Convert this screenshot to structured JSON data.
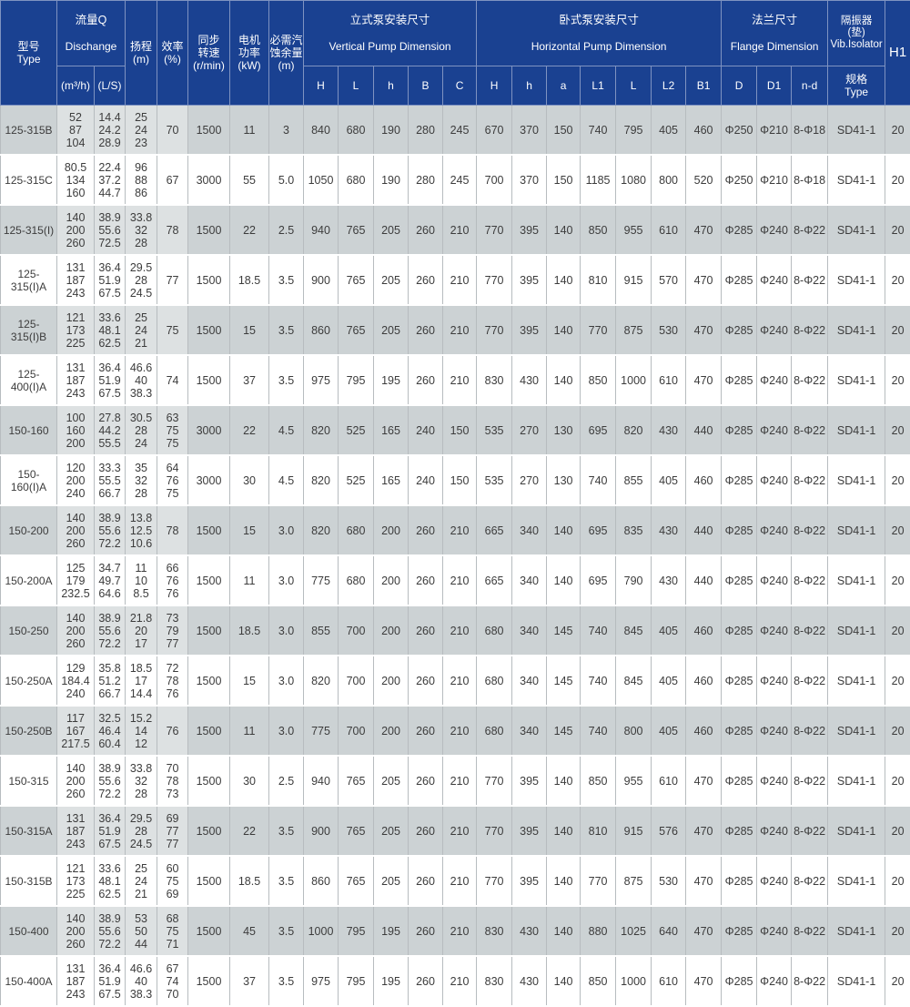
{
  "colors": {
    "header_bg": "#1a4191",
    "row_gray": "#ccd2d4",
    "row_white": "#ffffff",
    "grid_line": "#b7bcbf"
  },
  "table": {
    "header": {
      "type": "型号\nType",
      "discharge_zh": "流量Q",
      "discharge_en": "Dischange",
      "q_unit1": "(m³/h)",
      "q_unit2": "(L/S)",
      "head": "扬程\n(m)",
      "eff": "效率\n(%)",
      "speed": "同步\n转速\n(r/min)",
      "power": "电机\n功率\n(kW)",
      "npsh": "必需汽\n蚀余量\n(m)",
      "vertical_zh": "立式泵安装尺寸",
      "vertical_en": "Vertical Pump Dimension",
      "v_sub": {
        "H": "H",
        "L": "L",
        "h": "h",
        "B": "B",
        "C": "C"
      },
      "horizontal_zh": "卧式泵安装尺寸",
      "horizontal_en": "Horizontal Pump Dimension",
      "hz_sub": {
        "H": "H",
        "h": "h",
        "a": "a",
        "L1": "L1",
        "L": "L",
        "L2": "L2",
        "B1": "B1"
      },
      "flange_zh": "法兰尺寸",
      "flange_en": "Flange Dimension",
      "f_sub": {
        "D": "D",
        "D1": "D1",
        "nd": "n-d"
      },
      "vib": "隔振器\n(垫)\nVib.Isolator",
      "vib_sub": "规格\nType",
      "h1": "H1"
    },
    "rows": [
      {
        "type": "125-315B",
        "q1": "52\n87\n104",
        "q2": "14.4\n24.2\n28.9",
        "head": "25\n24\n23",
        "eff": "70",
        "speed": "1500",
        "power": "11",
        "npsh": "3",
        "vH": "840",
        "vL": "680",
        "vh": "190",
        "vB": "280",
        "vC": "245",
        "hH": "670",
        "hh": "370",
        "ha": "150",
        "hL1": "740",
        "hL": "795",
        "hL2": "405",
        "hB1": "460",
        "D": "Φ250",
        "D1": "Φ210",
        "nd": "8-Φ18",
        "vib": "SD41-1",
        "h1": "20"
      },
      {
        "type": "125-315C",
        "q1": "80.5\n134\n160",
        "q2": "22.4\n37.2\n44.7",
        "head": "96\n88\n86",
        "eff": "67",
        "speed": "3000",
        "power": "55",
        "npsh": "5.0",
        "vH": "1050",
        "vL": "680",
        "vh": "190",
        "vB": "280",
        "vC": "245",
        "hH": "700",
        "hh": "370",
        "ha": "150",
        "hL1": "1185",
        "hL": "1080",
        "hL2": "800",
        "hB1": "520",
        "D": "Φ250",
        "D1": "Φ210",
        "nd": "8-Φ18",
        "vib": "SD41-1",
        "h1": "20"
      },
      {
        "type": "125-315(I)",
        "q1": "140\n200\n260",
        "q2": "38.9\n55.6\n72.5",
        "head": "33.8\n32\n28",
        "eff": "78",
        "speed": "1500",
        "power": "22",
        "npsh": "2.5",
        "vH": "940",
        "vL": "765",
        "vh": "205",
        "vB": "260",
        "vC": "210",
        "hH": "770",
        "hh": "395",
        "ha": "140",
        "hL1": "850",
        "hL": "955",
        "hL2": "610",
        "hB1": "470",
        "D": "Φ285",
        "D1": "Φ240",
        "nd": "8-Φ22",
        "vib": "SD41-1",
        "h1": "20"
      },
      {
        "type": "125-315(I)A",
        "q1": "131\n187\n243",
        "q2": "36.4\n51.9\n67.5",
        "head": "29.5\n28\n24.5",
        "eff": "77",
        "speed": "1500",
        "power": "18.5",
        "npsh": "3.5",
        "vH": "900",
        "vL": "765",
        "vh": "205",
        "vB": "260",
        "vC": "210",
        "hH": "770",
        "hh": "395",
        "ha": "140",
        "hL1": "810",
        "hL": "915",
        "hL2": "570",
        "hB1": "470",
        "D": "Φ285",
        "D1": "Φ240",
        "nd": "8-Φ22",
        "vib": "SD41-1",
        "h1": "20"
      },
      {
        "type": "125-315(I)B",
        "q1": "121\n173\n225",
        "q2": "33.6\n48.1\n62.5",
        "head": "25\n24\n21",
        "eff": "75",
        "speed": "1500",
        "power": "15",
        "npsh": "3.5",
        "vH": "860",
        "vL": "765",
        "vh": "205",
        "vB": "260",
        "vC": "210",
        "hH": "770",
        "hh": "395",
        "ha": "140",
        "hL1": "770",
        "hL": "875",
        "hL2": "530",
        "hB1": "470",
        "D": "Φ285",
        "D1": "Φ240",
        "nd": "8-Φ22",
        "vib": "SD41-1",
        "h1": "20"
      },
      {
        "type": "125-400(I)A",
        "q1": "131\n187\n243",
        "q2": "36.4\n51.9\n67.5",
        "head": "46.6\n40\n38.3",
        "eff": "74",
        "speed": "1500",
        "power": "37",
        "npsh": "3.5",
        "vH": "975",
        "vL": "795",
        "vh": "195",
        "vB": "260",
        "vC": "210",
        "hH": "830",
        "hh": "430",
        "ha": "140",
        "hL1": "850",
        "hL": "1000",
        "hL2": "610",
        "hB1": "470",
        "D": "Φ285",
        "D1": "Φ240",
        "nd": "8-Φ22",
        "vib": "SD41-1",
        "h1": "20"
      },
      {
        "type": "150-160",
        "q1": "100\n160\n200",
        "q2": "27.8\n44.2\n55.5",
        "head": "30.5\n28\n24",
        "eff": "63\n75\n75",
        "speed": "3000",
        "power": "22",
        "npsh": "4.5",
        "vH": "820",
        "vL": "525",
        "vh": "165",
        "vB": "240",
        "vC": "150",
        "hH": "535",
        "hh": "270",
        "ha": "130",
        "hL1": "695",
        "hL": "820",
        "hL2": "430",
        "hB1": "440",
        "D": "Φ285",
        "D1": "Φ240",
        "nd": "8-Φ22",
        "vib": "SD41-1",
        "h1": "20"
      },
      {
        "type": "150-160(I)A",
        "q1": "120\n200\n240",
        "q2": "33.3\n55.5\n66.7",
        "head": "35\n32\n28",
        "eff": "64\n76\n75",
        "speed": "3000",
        "power": "30",
        "npsh": "4.5",
        "vH": "820",
        "vL": "525",
        "vh": "165",
        "vB": "240",
        "vC": "150",
        "hH": "535",
        "hh": "270",
        "ha": "130",
        "hL1": "740",
        "hL": "855",
        "hL2": "405",
        "hB1": "460",
        "D": "Φ285",
        "D1": "Φ240",
        "nd": "8-Φ22",
        "vib": "SD41-1",
        "h1": "20"
      },
      {
        "type": "150-200",
        "q1": "140\n200\n260",
        "q2": "38.9\n55.6\n72.2",
        "head": "13.8\n12.5\n10.6",
        "eff": "78",
        "speed": "1500",
        "power": "15",
        "npsh": "3.0",
        "vH": "820",
        "vL": "680",
        "vh": "200",
        "vB": "260",
        "vC": "210",
        "hH": "665",
        "hh": "340",
        "ha": "140",
        "hL1": "695",
        "hL": "835",
        "hL2": "430",
        "hB1": "440",
        "D": "Φ285",
        "D1": "Φ240",
        "nd": "8-Φ22",
        "vib": "SD41-1",
        "h1": "20"
      },
      {
        "type": "150-200A",
        "q1": "125\n179\n232.5",
        "q2": "34.7\n49.7\n64.6",
        "head": "11\n10\n8.5",
        "eff": "66\n76\n76",
        "speed": "1500",
        "power": "11",
        "npsh": "3.0",
        "vH": "775",
        "vL": "680",
        "vh": "200",
        "vB": "260",
        "vC": "210",
        "hH": "665",
        "hh": "340",
        "ha": "140",
        "hL1": "695",
        "hL": "790",
        "hL2": "430",
        "hB1": "440",
        "D": "Φ285",
        "D1": "Φ240",
        "nd": "8-Φ22",
        "vib": "SD41-1",
        "h1": "20"
      },
      {
        "type": "150-250",
        "q1": "140\n200\n260",
        "q2": "38.9\n55.6\n72.2",
        "head": "21.8\n20\n17",
        "eff": "73\n79\n77",
        "speed": "1500",
        "power": "18.5",
        "npsh": "3.0",
        "vH": "855",
        "vL": "700",
        "vh": "200",
        "vB": "260",
        "vC": "210",
        "hH": "680",
        "hh": "340",
        "ha": "145",
        "hL1": "740",
        "hL": "845",
        "hL2": "405",
        "hB1": "460",
        "D": "Φ285",
        "D1": "Φ240",
        "nd": "8-Φ22",
        "vib": "SD41-1",
        "h1": "20"
      },
      {
        "type": "150-250A",
        "q1": "129\n184.4\n240",
        "q2": "35.8\n51.2\n66.7",
        "head": "18.5\n17\n14.4",
        "eff": "72\n78\n76",
        "speed": "1500",
        "power": "15",
        "npsh": "3.0",
        "vH": "820",
        "vL": "700",
        "vh": "200",
        "vB": "260",
        "vC": "210",
        "hH": "680",
        "hh": "340",
        "ha": "145",
        "hL1": "740",
        "hL": "845",
        "hL2": "405",
        "hB1": "460",
        "D": "Φ285",
        "D1": "Φ240",
        "nd": "8-Φ22",
        "vib": "SD41-1",
        "h1": "20"
      },
      {
        "type": "150-250B",
        "q1": "117\n167\n217.5",
        "q2": "32.5\n46.4\n60.4",
        "head": "15.2\n14\n12",
        "eff": "76",
        "speed": "1500",
        "power": "11",
        "npsh": "3.0",
        "vH": "775",
        "vL": "700",
        "vh": "200",
        "vB": "260",
        "vC": "210",
        "hH": "680",
        "hh": "340",
        "ha": "145",
        "hL1": "740",
        "hL": "800",
        "hL2": "405",
        "hB1": "460",
        "D": "Φ285",
        "D1": "Φ240",
        "nd": "8-Φ22",
        "vib": "SD41-1",
        "h1": "20"
      },
      {
        "type": "150-315",
        "q1": "140\n200\n260",
        "q2": "38.9\n55.6\n72.2",
        "head": "33.8\n32\n28",
        "eff": "70\n78\n73",
        "speed": "1500",
        "power": "30",
        "npsh": "2.5",
        "vH": "940",
        "vL": "765",
        "vh": "205",
        "vB": "260",
        "vC": "210",
        "hH": "770",
        "hh": "395",
        "ha": "140",
        "hL1": "850",
        "hL": "955",
        "hL2": "610",
        "hB1": "470",
        "D": "Φ285",
        "D1": "Φ240",
        "nd": "8-Φ22",
        "vib": "SD41-1",
        "h1": "20"
      },
      {
        "type": "150-315A",
        "q1": "131\n187\n243",
        "q2": "36.4\n51.9\n67.5",
        "head": "29.5\n28\n24.5",
        "eff": "69\n77\n77",
        "speed": "1500",
        "power": "22",
        "npsh": "3.5",
        "vH": "900",
        "vL": "765",
        "vh": "205",
        "vB": "260",
        "vC": "210",
        "hH": "770",
        "hh": "395",
        "ha": "140",
        "hL1": "810",
        "hL": "915",
        "hL2": "576",
        "hB1": "470",
        "D": "Φ285",
        "D1": "Φ240",
        "nd": "8-Φ22",
        "vib": "SD41-1",
        "h1": "20"
      },
      {
        "type": "150-315B",
        "q1": "121\n173\n225",
        "q2": "33.6\n48.1\n62.5",
        "head": "25\n24\n21",
        "eff": "60\n75\n69",
        "speed": "1500",
        "power": "18.5",
        "npsh": "3.5",
        "vH": "860",
        "vL": "765",
        "vh": "205",
        "vB": "260",
        "vC": "210",
        "hH": "770",
        "hh": "395",
        "ha": "140",
        "hL1": "770",
        "hL": "875",
        "hL2": "530",
        "hB1": "470",
        "D": "Φ285",
        "D1": "Φ240",
        "nd": "8-Φ22",
        "vib": "SD41-1",
        "h1": "20"
      },
      {
        "type": "150-400",
        "q1": "140\n200\n260",
        "q2": "38.9\n55.6\n72.2",
        "head": "53\n50\n44",
        "eff": "68\n75\n71",
        "speed": "1500",
        "power": "45",
        "npsh": "3.5",
        "vH": "1000",
        "vL": "795",
        "vh": "195",
        "vB": "260",
        "vC": "210",
        "hH": "830",
        "hh": "430",
        "ha": "140",
        "hL1": "880",
        "hL": "1025",
        "hL2": "640",
        "hB1": "470",
        "D": "Φ285",
        "D1": "Φ240",
        "nd": "8-Φ22",
        "vib": "SD41-1",
        "h1": "20"
      },
      {
        "type": "150-400A",
        "q1": "131\n187\n243",
        "q2": "36.4\n51.9\n67.5",
        "head": "46.6\n40\n38.3",
        "eff": "67\n74\n70",
        "speed": "1500",
        "power": "37",
        "npsh": "3.5",
        "vH": "975",
        "vL": "795",
        "vh": "195",
        "vB": "260",
        "vC": "210",
        "hH": "830",
        "hh": "430",
        "ha": "140",
        "hL1": "850",
        "hL": "1000",
        "hL2": "610",
        "hB1": "470",
        "D": "Φ285",
        "D1": "Φ240",
        "nd": "8-Φ22",
        "vib": "SD41-1",
        "h1": "20"
      }
    ]
  }
}
